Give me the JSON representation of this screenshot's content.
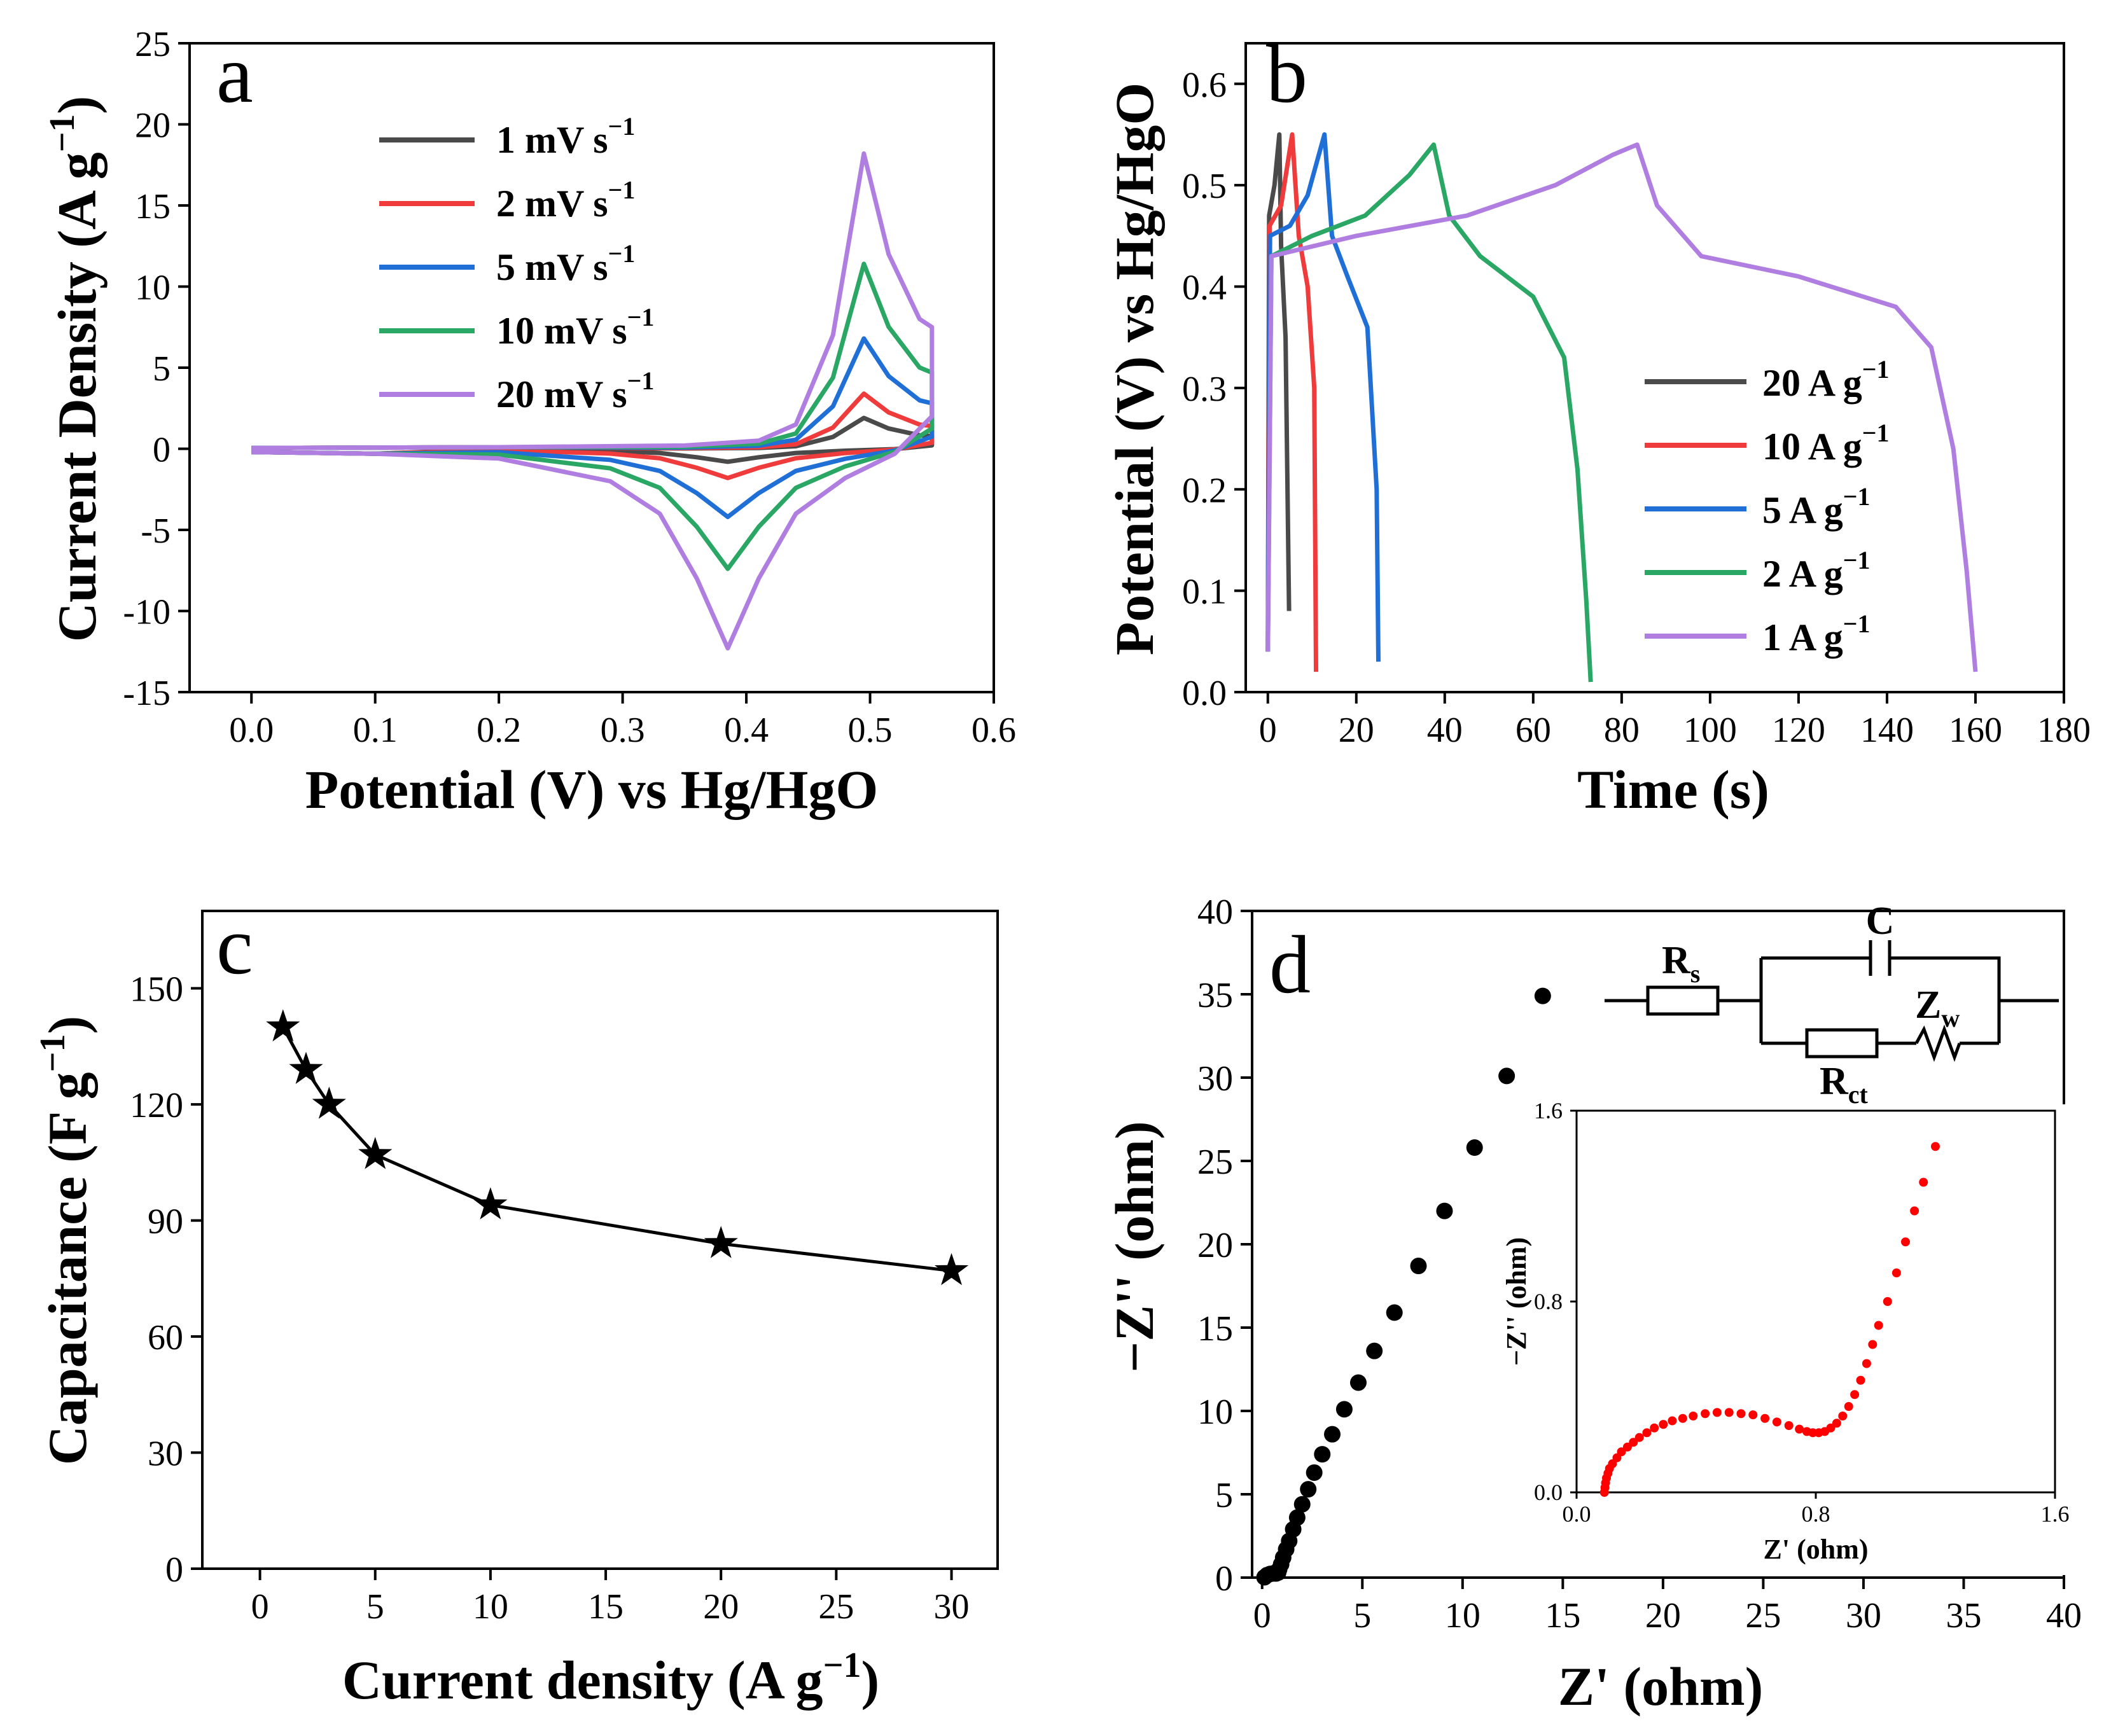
{
  "chart_data": [
    {
      "panel": "a",
      "type": "line",
      "panel_label": "a",
      "xlabel": "Potential (V) vs Hg/HgO",
      "ylabel": "Current Density (A g",
      "ylabel_sup": "−1",
      "ylabel_close": ")",
      "xlim": [
        -0.05,
        0.6
      ],
      "ylim": [
        -15,
        25
      ],
      "xticks": [
        "0.0",
        "0.1",
        "0.2",
        "0.3",
        "0.4",
        "0.5",
        "0.6"
      ],
      "yticks": [
        "-15",
        "-10",
        "-5",
        "0",
        "5",
        "10",
        "15",
        "20",
        "25"
      ],
      "series": [
        {
          "name": "1 mV s",
          "sup": "−1",
          "color": "#4a4a4a",
          "pa": 1.9,
          "pc": -0.8
        },
        {
          "name": "2 mV s",
          "sup": "−1",
          "color": "#ef3b3b",
          "pa": 3.4,
          "pc": -1.8
        },
        {
          "name": "5 mV s",
          "sup": "−1",
          "color": "#1f6fd6",
          "pa": 6.8,
          "pc": -4.2
        },
        {
          "name": "10 mV s",
          "sup": "−1",
          "color": "#2aa764",
          "pa": 11.4,
          "pc": -7.4
        },
        {
          "name": "20 mV s",
          "sup": "−1",
          "color": "#b07ee0",
          "pa": 18.2,
          "pc": -12.3
        }
      ]
    },
    {
      "panel": "b",
      "type": "line",
      "panel_label": "b",
      "xlabel": "Time (s)",
      "ylabel": "Potential (V) vs Hg/HgO",
      "xlim": [
        -5,
        180
      ],
      "ylim": [
        0,
        0.64
      ],
      "xticks": [
        "0",
        "20",
        "40",
        "60",
        "80",
        "100",
        "120",
        "140",
        "160",
        "180"
      ],
      "yticks": [
        "0.0",
        "0.1",
        "0.2",
        "0.3",
        "0.4",
        "0.5",
        "0.6"
      ],
      "series": [
        {
          "name": "20 A g",
          "sup": "−1",
          "color": "#4a4a4a",
          "points": [
            [
              0,
              0.04
            ],
            [
              0.3,
              0.47
            ],
            [
              1.5,
              0.5
            ],
            [
              2.6,
              0.55
            ],
            [
              3,
              0.44
            ],
            [
              4,
              0.35
            ],
            [
              4.8,
              0.08
            ]
          ]
        },
        {
          "name": "10 A g",
          "sup": "−1",
          "color": "#ef3b3b",
          "points": [
            [
              0,
              0.05
            ],
            [
              0.4,
              0.46
            ],
            [
              3,
              0.48
            ],
            [
              5.5,
              0.55
            ],
            [
              7,
              0.45
            ],
            [
              9,
              0.4
            ],
            [
              10.5,
              0.3
            ],
            [
              10.9,
              0.02
            ]
          ]
        },
        {
          "name": "5 A g",
          "sup": "−1",
          "color": "#1f6fd6",
          "points": [
            [
              0,
              0.04
            ],
            [
              0.5,
              0.45
            ],
            [
              5,
              0.46
            ],
            [
              9,
              0.49
            ],
            [
              12.8,
              0.55
            ],
            [
              14.5,
              0.45
            ],
            [
              18,
              0.41
            ],
            [
              22.5,
              0.36
            ],
            [
              24.6,
              0.2
            ],
            [
              25,
              0.03
            ]
          ]
        },
        {
          "name": "2 A g",
          "sup": "−1",
          "color": "#2aa764",
          "points": [
            [
              0,
              0.04
            ],
            [
              0.8,
              0.43
            ],
            [
              10,
              0.45
            ],
            [
              22,
              0.47
            ],
            [
              32,
              0.51
            ],
            [
              37.5,
              0.54
            ],
            [
              41,
              0.47
            ],
            [
              48,
              0.43
            ],
            [
              60,
              0.39
            ],
            [
              67,
              0.33
            ],
            [
              70,
              0.22
            ],
            [
              72,
              0.09
            ],
            [
              73,
              0.01
            ]
          ]
        },
        {
          "name": "1 A g",
          "sup": "−1",
          "color": "#b07ee0",
          "points": [
            [
              0,
              0.04
            ],
            [
              0.8,
              0.43
            ],
            [
              20,
              0.45
            ],
            [
              45,
              0.47
            ],
            [
              65,
              0.5
            ],
            [
              78,
              0.53
            ],
            [
              83.5,
              0.54
            ],
            [
              88,
              0.48
            ],
            [
              98,
              0.43
            ],
            [
              120,
              0.41
            ],
            [
              142,
              0.38
            ],
            [
              150,
              0.34
            ],
            [
              155,
              0.24
            ],
            [
              158,
              0.12
            ],
            [
              160,
              0.02
            ]
          ]
        }
      ]
    },
    {
      "panel": "c",
      "type": "line",
      "panel_label": "c",
      "xlabel": "Current density (A g",
      "xlabel_sup": "−1",
      "xlabel_close": ")",
      "ylabel": "Capacitance (F g",
      "ylabel_sup": "−1",
      "ylabel_close": ")",
      "xlim": [
        -2.5,
        32
      ],
      "ylim": [
        0,
        170
      ],
      "xticks": [
        "0",
        "5",
        "10",
        "15",
        "20",
        "25",
        "30"
      ],
      "yticks": [
        "0",
        "30",
        "60",
        "90",
        "120",
        "150"
      ],
      "x": [
        1,
        2,
        3,
        5,
        10,
        20,
        30
      ],
      "y": [
        140,
        129,
        120,
        107,
        94,
        84,
        77
      ]
    },
    {
      "panel": "d",
      "type": "scatter",
      "panel_label": "d",
      "xlabel": "Z' (ohm)",
      "ylabel": "−Z'' (ohm)",
      "xlim": [
        -0.5,
        40
      ],
      "ylim": [
        0,
        40
      ],
      "xticks": [
        "0",
        "5",
        "10",
        "15",
        "20",
        "25",
        "30",
        "35",
        "40"
      ],
      "yticks": [
        "0",
        "5",
        "10",
        "15",
        "20",
        "25",
        "30",
        "35",
        "40"
      ],
      "color": "#000000",
      "points": [
        [
          0.12,
          0.02
        ],
        [
          0.25,
          0.15
        ],
        [
          0.4,
          0.22
        ],
        [
          0.55,
          0.25
        ],
        [
          0.7,
          0.25
        ],
        [
          0.8,
          0.3
        ],
        [
          0.85,
          0.5
        ],
        [
          0.95,
          0.8
        ],
        [
          1.05,
          1.2
        ],
        [
          1.2,
          1.7
        ],
        [
          1.35,
          2.2
        ],
        [
          1.55,
          2.9
        ],
        [
          1.75,
          3.6
        ],
        [
          2.0,
          4.4
        ],
        [
          2.3,
          5.3
        ],
        [
          2.6,
          6.3
        ],
        [
          3.0,
          7.4
        ],
        [
          3.5,
          8.6
        ],
        [
          4.1,
          10.1
        ],
        [
          4.8,
          11.7
        ],
        [
          5.6,
          13.6
        ],
        [
          6.6,
          15.9
        ],
        [
          7.8,
          18.7
        ],
        [
          9.1,
          22.0
        ],
        [
          10.6,
          25.8
        ],
        [
          12.2,
          30.1
        ],
        [
          14.0,
          34.9
        ]
      ],
      "circuit": {
        "rs": "R",
        "rs_sub": "s",
        "c": "C",
        "zw": "Z",
        "zw_sub": "w",
        "rct": "R",
        "rct_sub": "ct"
      },
      "inset": {
        "xlabel": "Z' (ohm)",
        "ylabel": "−Z'' (ohm)",
        "xlim": [
          0,
          1.6
        ],
        "ylim": [
          0,
          1.6
        ],
        "xticks": [
          "0.0",
          "0.8",
          "1.6"
        ],
        "yticks": [
          "0.0",
          "0.8",
          "1.6"
        ],
        "color": "#ff0000",
        "points": [
          [
            0.093,
            0.0
          ],
          [
            0.095,
            0.02
          ],
          [
            0.097,
            0.04
          ],
          [
            0.1,
            0.06
          ],
          [
            0.105,
            0.08
          ],
          [
            0.11,
            0.1
          ],
          [
            0.12,
            0.12
          ],
          [
            0.135,
            0.145
          ],
          [
            0.15,
            0.17
          ],
          [
            0.17,
            0.19
          ],
          [
            0.19,
            0.21
          ],
          [
            0.21,
            0.23
          ],
          [
            0.235,
            0.25
          ],
          [
            0.26,
            0.27
          ],
          [
            0.29,
            0.285
          ],
          [
            0.32,
            0.3
          ],
          [
            0.355,
            0.31
          ],
          [
            0.39,
            0.32
          ],
          [
            0.43,
            0.33
          ],
          [
            0.47,
            0.335
          ],
          [
            0.51,
            0.335
          ],
          [
            0.55,
            0.33
          ],
          [
            0.59,
            0.325
          ],
          [
            0.63,
            0.31
          ],
          [
            0.67,
            0.295
          ],
          [
            0.71,
            0.28
          ],
          [
            0.745,
            0.265
          ],
          [
            0.77,
            0.255
          ],
          [
            0.79,
            0.25
          ],
          [
            0.81,
            0.25
          ],
          [
            0.83,
            0.255
          ],
          [
            0.85,
            0.27
          ],
          [
            0.87,
            0.29
          ],
          [
            0.89,
            0.32
          ],
          [
            0.91,
            0.36
          ],
          [
            0.93,
            0.41
          ],
          [
            0.95,
            0.47
          ],
          [
            0.97,
            0.54
          ],
          [
            0.99,
            0.62
          ],
          [
            1.01,
            0.7
          ],
          [
            1.04,
            0.8
          ],
          [
            1.07,
            0.92
          ],
          [
            1.1,
            1.05
          ],
          [
            1.13,
            1.18
          ],
          [
            1.16,
            1.3
          ],
          [
            1.2,
            1.45
          ]
        ]
      }
    }
  ]
}
